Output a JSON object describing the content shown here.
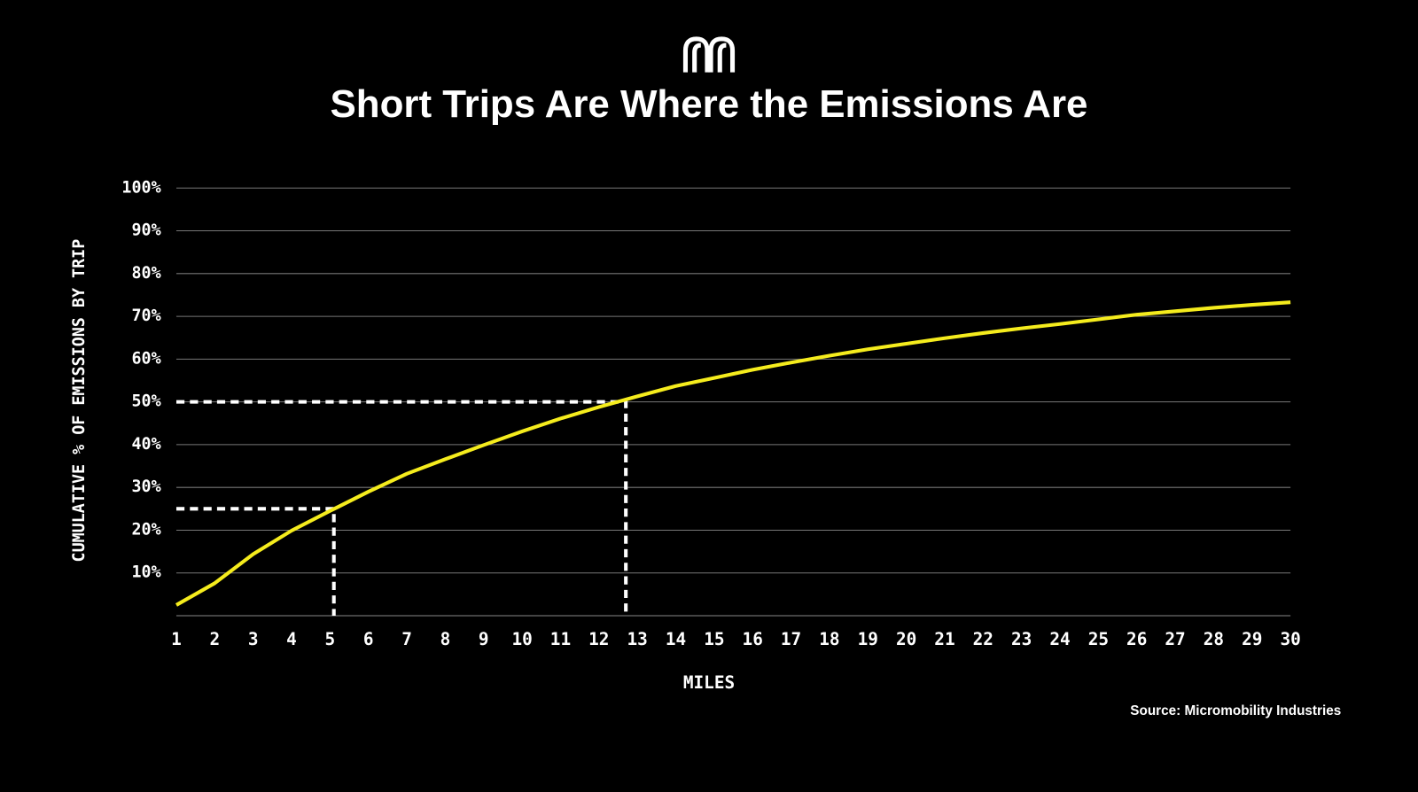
{
  "chart_data": {
    "type": "line",
    "title": "Short Trips Are Where the Emissions Are",
    "x_label": "MILES",
    "y_label": "CUMULATIVE % OF EMISSIONS BY TRIP",
    "source": "Source: Micromobility Industries",
    "x": [
      1,
      2,
      3,
      4,
      5,
      6,
      7,
      8,
      9,
      10,
      11,
      12,
      13,
      14,
      15,
      16,
      17,
      18,
      19,
      20,
      21,
      22,
      23,
      24,
      25,
      26,
      27,
      28,
      29,
      30
    ],
    "series": [
      {
        "color": "#f5ec1d",
        "values": [
          2.5,
          7.6,
          14.4,
          19.9,
          24.5,
          29,
          33.2,
          36.6,
          39.9,
          43.1,
          46.1,
          48.8,
          51.3,
          53.7,
          55.6,
          57.5,
          59.2,
          60.8,
          62.3,
          63.6,
          64.9,
          66.1,
          67.2,
          68.2,
          69.3,
          70.4,
          71.2,
          72,
          72.7,
          73.3
        ]
      }
    ],
    "xlim": [
      1,
      30
    ],
    "xticks": [
      1,
      2,
      3,
      4,
      5,
      6,
      7,
      8,
      9,
      10,
      11,
      12,
      13,
      14,
      15,
      16,
      17,
      18,
      19,
      20,
      21,
      22,
      23,
      24,
      25,
      26,
      27,
      28,
      29,
      30
    ],
    "ylim": [
      0,
      100
    ],
    "yticks": [
      {
        "value": 10,
        "label": "10%"
      },
      {
        "value": 20,
        "label": "20%"
      },
      {
        "value": 30,
        "label": "30%"
      },
      {
        "value": 40,
        "label": "40%"
      },
      {
        "value": 50,
        "label": "50%"
      },
      {
        "value": 60,
        "label": "60%"
      },
      {
        "value": 70,
        "label": "70%"
      },
      {
        "value": 80,
        "label": "80%"
      },
      {
        "value": 90,
        "label": "90%"
      },
      {
        "value": 100,
        "label": "100%"
      }
    ],
    "grid": true,
    "reference_points": [
      {
        "x": 5.1,
        "y": 25
      },
      {
        "x": 12.7,
        "y": 50
      }
    ]
  }
}
